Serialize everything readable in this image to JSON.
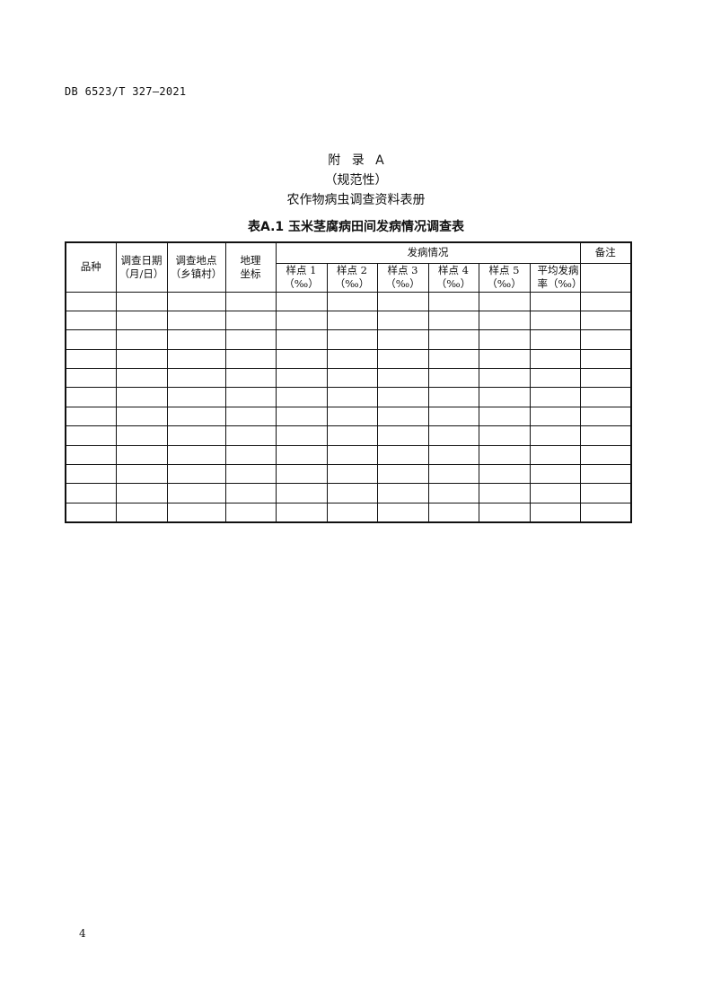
{
  "header": {
    "doc_code": "DB 6523/T 327—2021"
  },
  "appendix": {
    "title": "附 录  A",
    "nature": "（规范性）",
    "subtitle": "农作物病虫调查资料表册"
  },
  "table": {
    "caption": "表A.1 玉米茎腐病田间发病情况调查表",
    "columns": {
      "variety": "品种",
      "date": [
        "调查日期",
        "（月/日）"
      ],
      "location": [
        "调查地点",
        "（乡镇村）"
      ],
      "coords": [
        "地理",
        "坐标"
      ],
      "incidence": "发病情况",
      "remarks": "备注",
      "samples": [
        [
          "样点 1",
          "（‰）"
        ],
        [
          "样点 2",
          "（‰）"
        ],
        [
          "样点 3",
          "（‰）"
        ],
        [
          "样点 4",
          "（‰）"
        ],
        [
          "样点 5",
          "（‰）"
        ],
        [
          "平均发病",
          "率（‰）"
        ]
      ]
    }
  },
  "footer": {
    "page_number": "4"
  }
}
